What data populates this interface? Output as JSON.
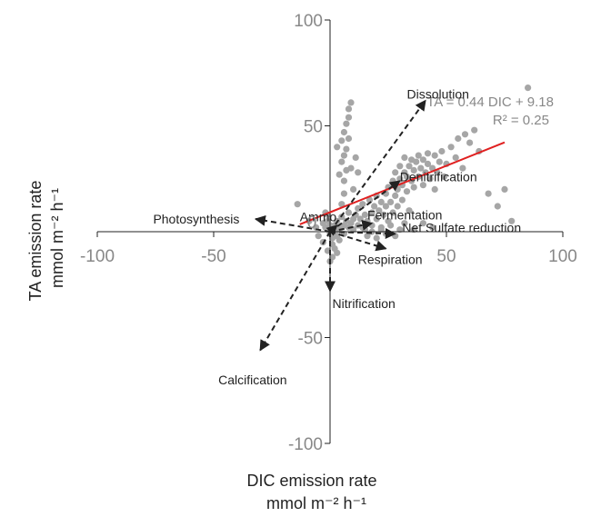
{
  "chart_data": {
    "type": "scatter",
    "xlabel": "DIC emission rate",
    "xunit": "mmol m⁻² h⁻¹",
    "ylabel": "TA emission rate",
    "yunit": "mmol m⁻² h⁻¹",
    "xlim": [
      -100,
      100
    ],
    "ylim": [
      -100,
      100
    ],
    "xticks": [
      -100,
      -50,
      0,
      50,
      100
    ],
    "yticks": [
      -100,
      -50,
      0,
      50,
      100
    ],
    "x_tick_labels": [
      "-100",
      "-50",
      "0",
      "50",
      "100"
    ],
    "y_tick_labels": [
      "-100",
      "-50",
      "0",
      "50",
      "100"
    ],
    "grid": false,
    "regression": {
      "equation": "TA = 0.44 DIC + 9.18",
      "r2": "R² = 0.25",
      "slope": 0.44,
      "intercept": 9.18,
      "x_range": [
        -13,
        75
      ],
      "color": "#e02020"
    },
    "point_color": "#a6a6a6",
    "points": [
      [
        -3,
        4
      ],
      [
        -2,
        2
      ],
      [
        -1,
        5
      ],
      [
        -1,
        1
      ],
      [
        0,
        3
      ],
      [
        0,
        0
      ],
      [
        0,
        -1
      ],
      [
        1,
        2
      ],
      [
        1,
        -3
      ],
      [
        1,
        -6
      ],
      [
        2,
        3
      ],
      [
        2,
        0
      ],
      [
        3,
        -2
      ],
      [
        3,
        5
      ],
      [
        4,
        1
      ],
      [
        4,
        -4
      ],
      [
        5,
        2
      ],
      [
        5,
        7
      ],
      [
        6,
        3
      ],
      [
        6,
        -1
      ],
      [
        7,
        5
      ],
      [
        8,
        2
      ],
      [
        8,
        9
      ],
      [
        9,
        4
      ],
      [
        10,
        6
      ],
      [
        10,
        1
      ],
      [
        11,
        8
      ],
      [
        12,
        3
      ],
      [
        12,
        11
      ],
      [
        13,
        6
      ],
      [
        14,
        2
      ],
      [
        14,
        13
      ],
      [
        15,
        8
      ],
      [
        16,
        5
      ],
      [
        17,
        15
      ],
      [
        18,
        9
      ],
      [
        18,
        3
      ],
      [
        19,
        12
      ],
      [
        20,
        6
      ],
      [
        20,
        17
      ],
      [
        21,
        10
      ],
      [
        22,
        14
      ],
      [
        22,
        2
      ],
      [
        23,
        8
      ],
      [
        24,
        18
      ],
      [
        24,
        12
      ],
      [
        25,
        5
      ],
      [
        25,
        21
      ],
      [
        26,
        14
      ],
      [
        27,
        9
      ],
      [
        27,
        24
      ],
      [
        28,
        17
      ],
      [
        28,
        28
      ],
      [
        29,
        12
      ],
      [
        29,
        20
      ],
      [
        30,
        25
      ],
      [
        30,
        31
      ],
      [
        31,
        15
      ],
      [
        31,
        22
      ],
      [
        32,
        28
      ],
      [
        32,
        35
      ],
      [
        33,
        19
      ],
      [
        33,
        26
      ],
      [
        34,
        31
      ],
      [
        34,
        10
      ],
      [
        35,
        24
      ],
      [
        35,
        34
      ],
      [
        36,
        29
      ],
      [
        36,
        21
      ],
      [
        37,
        33
      ],
      [
        38,
        26
      ],
      [
        38,
        36
      ],
      [
        39,
        30
      ],
      [
        40,
        22
      ],
      [
        40,
        34
      ],
      [
        41,
        28
      ],
      [
        42,
        32
      ],
      [
        42,
        37
      ],
      [
        43,
        25
      ],
      [
        44,
        30
      ],
      [
        45,
        36
      ],
      [
        45,
        20
      ],
      [
        46,
        28
      ],
      [
        47,
        33
      ],
      [
        48,
        38
      ],
      [
        49,
        26
      ],
      [
        50,
        32
      ],
      [
        52,
        40
      ],
      [
        54,
        35
      ],
      [
        55,
        44
      ],
      [
        57,
        30
      ],
      [
        58,
        46
      ],
      [
        60,
        42
      ],
      [
        62,
        48
      ],
      [
        64,
        38
      ],
      [
        68,
        18
      ],
      [
        72,
        12
      ],
      [
        75,
        20
      ],
      [
        78,
        5
      ],
      [
        85,
        68
      ],
      [
        5,
        13
      ],
      [
        6,
        18
      ],
      [
        6,
        24
      ],
      [
        7,
        29
      ],
      [
        5,
        33
      ],
      [
        6,
        36
      ],
      [
        7,
        39
      ],
      [
        5,
        43
      ],
      [
        6,
        47
      ],
      [
        7,
        51
      ],
      [
        8,
        54
      ],
      [
        8,
        58
      ],
      [
        9,
        61
      ],
      [
        4,
        27
      ],
      [
        8,
        44
      ],
      [
        10,
        20
      ],
      [
        12,
        28
      ],
      [
        3,
        40
      ],
      [
        11,
        35
      ],
      [
        9,
        30
      ],
      [
        -1,
        8
      ],
      [
        -6,
        2
      ],
      [
        -9,
        5
      ],
      [
        -14,
        13
      ],
      [
        -5,
        -2
      ],
      [
        -3,
        -5
      ],
      [
        -2,
        9
      ],
      [
        15,
        1
      ],
      [
        16,
        -2
      ],
      [
        18,
        0
      ],
      [
        20,
        -3
      ],
      [
        22,
        1
      ],
      [
        24,
        -1
      ],
      [
        26,
        3
      ],
      [
        28,
        -2
      ],
      [
        30,
        1
      ],
      [
        32,
        4
      ],
      [
        36,
        1
      ],
      [
        40,
        4
      ],
      [
        44,
        2
      ],
      [
        2,
        -8
      ],
      [
        3,
        -10
      ],
      [
        1,
        -12
      ],
      [
        -1,
        -9
      ],
      [
        0,
        -14
      ]
    ],
    "vectors": [
      {
        "label": "Dissolution",
        "to": [
          41,
          62
        ],
        "label_pos": [
          33,
          65
        ],
        "anchor": "start"
      },
      {
        "label": "Denitrification",
        "to": [
          30,
          24
        ],
        "label_pos": [
          30,
          26
        ],
        "anchor": "start"
      },
      {
        "label": "Ammo",
        "to": [
          3,
          3
        ],
        "label_pos": [
          -13,
          7
        ],
        "anchor": "start"
      },
      {
        "label": "Photosynthesis",
        "to": [
          -32,
          6
        ],
        "label_pos": [
          -76,
          6
        ],
        "anchor": "start"
      },
      {
        "label": "Fermentation",
        "to": [
          18,
          4
        ],
        "label_pos": [
          16,
          8
        ],
        "anchor": "start"
      },
      {
        "label": "Net Sulfate reduction",
        "to": [
          28,
          -1
        ],
        "label_pos": [
          31,
          2
        ],
        "anchor": "start"
      },
      {
        "label": "Respiration",
        "to": [
          24,
          -8
        ],
        "label_pos": [
          12,
          -13
        ],
        "anchor": "start"
      },
      {
        "label": "Nitrification",
        "to": [
          0,
          -28
        ],
        "label_pos": [
          1,
          -34
        ],
        "anchor": "start"
      },
      {
        "label": "Calcification",
        "to": [
          -30,
          -56
        ],
        "label_pos": [
          -48,
          -70
        ],
        "anchor": "start"
      }
    ]
  }
}
